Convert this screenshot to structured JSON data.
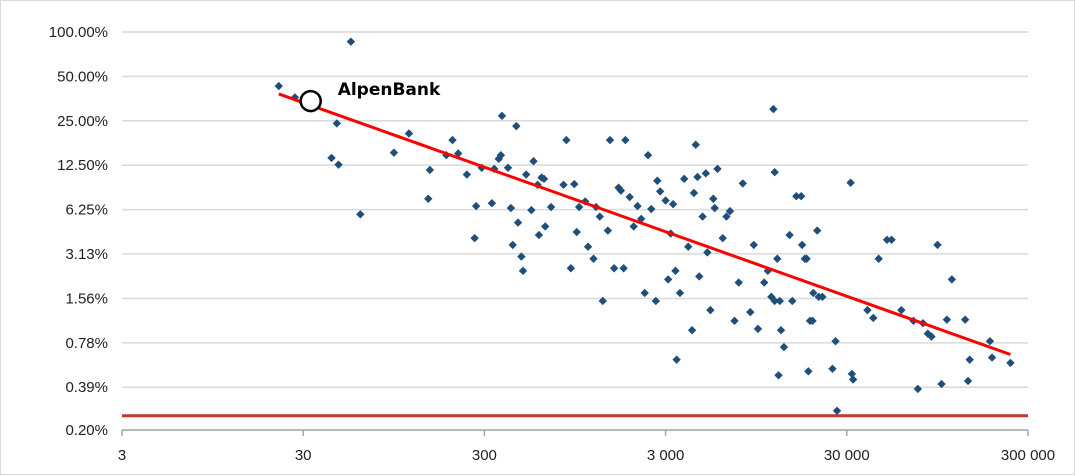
{
  "chart_data": {
    "type": "scatter",
    "title": "",
    "xlabel": "",
    "ylabel": "",
    "x_scale": "log",
    "y_scale": "log",
    "xlim": [
      3,
      300000
    ],
    "ylim": [
      0.2,
      100
    ],
    "x_ticks": [
      {
        "value": 3,
        "label": "3"
      },
      {
        "value": 30,
        "label": "30"
      },
      {
        "value": 300,
        "label": "300"
      },
      {
        "value": 3000,
        "label": "3 000"
      },
      {
        "value": 30000,
        "label": "30 000"
      },
      {
        "value": 300000,
        "label": "300 000"
      }
    ],
    "y_ticks": [
      {
        "value": 100,
        "label": "100.00%"
      },
      {
        "value": 50,
        "label": "50.00%"
      },
      {
        "value": 25,
        "label": "25.00%"
      },
      {
        "value": 12.5,
        "label": "12.50%"
      },
      {
        "value": 6.25,
        "label": "6.25%"
      },
      {
        "value": 3.13,
        "label": "3.13%"
      },
      {
        "value": 1.56,
        "label": "1.56%"
      },
      {
        "value": 0.78,
        "label": "0.78%"
      },
      {
        "value": 0.39,
        "label": "0.39%"
      },
      {
        "value": 0.2,
        "label": "0.20%"
      }
    ],
    "grid": {
      "horizontal": true,
      "vertical": false
    },
    "colors": {
      "points": "#1f4e79",
      "trend": "#ff0000",
      "reference": "#c0392b",
      "grid": "#d9d9d9",
      "axis": "#a6a6a6"
    },
    "points": [
      [
        22,
        43
      ],
      [
        27,
        36
      ],
      [
        55,
        86
      ],
      [
        46,
        24
      ],
      [
        43,
        14
      ],
      [
        47,
        12.6
      ],
      [
        62,
        5.8
      ],
      [
        95,
        15.2
      ],
      [
        115,
        20.5
      ],
      [
        150,
        11.6
      ],
      [
        147,
        7.4
      ],
      [
        185,
        14.6
      ],
      [
        200,
        18.5
      ],
      [
        215,
        15
      ],
      [
        240,
        10.8
      ],
      [
        270,
        6.6
      ],
      [
        265,
        4
      ],
      [
        290,
        12
      ],
      [
        330,
        6.9
      ],
      [
        340,
        11.8
      ],
      [
        360,
        13.8
      ],
      [
        370,
        14.6
      ],
      [
        375,
        27
      ],
      [
        405,
        12
      ],
      [
        420,
        6.4
      ],
      [
        430,
        3.6
      ],
      [
        460,
        5.1
      ],
      [
        480,
        3
      ],
      [
        490,
        2.4
      ],
      [
        450,
        23
      ],
      [
        510,
        10.8
      ],
      [
        545,
        6.2
      ],
      [
        560,
        13.3
      ],
      [
        590,
        9.2
      ],
      [
        600,
        4.2
      ],
      [
        620,
        10.3
      ],
      [
        650,
        4.8
      ],
      [
        640,
        10.1
      ],
      [
        700,
        6.5
      ],
      [
        820,
        9.2
      ],
      [
        850,
        18.5
      ],
      [
        900,
        2.5
      ],
      [
        940,
        9.3
      ],
      [
        970,
        4.4
      ],
      [
        1000,
        6.5
      ],
      [
        1080,
        7.1
      ],
      [
        1120,
        3.5
      ],
      [
        1200,
        2.9
      ],
      [
        1240,
        6.5
      ],
      [
        1300,
        5.6
      ],
      [
        1350,
        1.5
      ],
      [
        1440,
        4.5
      ],
      [
        1480,
        18.5
      ],
      [
        1560,
        2.5
      ],
      [
        1650,
        8.8
      ],
      [
        1700,
        8.4
      ],
      [
        1760,
        2.5
      ],
      [
        1800,
        18.5
      ],
      [
        1900,
        7.6
      ],
      [
        2000,
        4.8
      ],
      [
        2100,
        6.6
      ],
      [
        2200,
        5.4
      ],
      [
        2300,
        1.7
      ],
      [
        2400,
        14.6
      ],
      [
        2500,
        6.3
      ],
      [
        2650,
        1.5
      ],
      [
        2700,
        9.8
      ],
      [
        2800,
        8.3
      ],
      [
        3000,
        7.2
      ],
      [
        3100,
        2.1
      ],
      [
        3200,
        4.3
      ],
      [
        3300,
        6.8
      ],
      [
        3400,
        2.4
      ],
      [
        3450,
        0.6
      ],
      [
        3600,
        1.7
      ],
      [
        3800,
        10.1
      ],
      [
        4000,
        3.5
      ],
      [
        4200,
        0.95
      ],
      [
        4300,
        8.1
      ],
      [
        4400,
        17.2
      ],
      [
        4500,
        10.4
      ],
      [
        4600,
        2.2
      ],
      [
        4800,
        5.6
      ],
      [
        5000,
        11
      ],
      [
        5100,
        3.2
      ],
      [
        5300,
        1.3
      ],
      [
        5500,
        7.4
      ],
      [
        5600,
        6.4
      ],
      [
        5800,
        11.8
      ],
      [
        6200,
        4
      ],
      [
        6500,
        5.6
      ],
      [
        6800,
        6.1
      ],
      [
        7200,
        1.1
      ],
      [
        7600,
        2
      ],
      [
        8000,
        9.4
      ],
      [
        8800,
        1.26
      ],
      [
        9200,
        3.6
      ],
      [
        9700,
        0.97
      ],
      [
        10500,
        2
      ],
      [
        11000,
        2.4
      ],
      [
        11500,
        1.6
      ],
      [
        11800,
        30
      ],
      [
        12000,
        1.5
      ],
      [
        12400,
        2.9
      ],
      [
        12800,
        1.5
      ],
      [
        13000,
        0.95
      ],
      [
        12000,
        11.2
      ],
      [
        12600,
        0.47
      ],
      [
        13500,
        0.73
      ],
      [
        14500,
        4.2
      ],
      [
        15000,
        1.5
      ],
      [
        15800,
        7.7
      ],
      [
        16800,
        7.7
      ],
      [
        17000,
        3.6
      ],
      [
        17600,
        2.9
      ],
      [
        18000,
        2.9
      ],
      [
        18400,
        0.5
      ],
      [
        18800,
        1.1
      ],
      [
        19400,
        1.1
      ],
      [
        19600,
        1.7
      ],
      [
        20600,
        4.5
      ],
      [
        21000,
        1.6
      ],
      [
        22000,
        1.6
      ],
      [
        25000,
        0.52
      ],
      [
        26000,
        0.8
      ],
      [
        26500,
        0.27
      ],
      [
        31500,
        9.5
      ],
      [
        32000,
        0.48
      ],
      [
        32500,
        0.44
      ],
      [
        39000,
        1.3
      ],
      [
        42000,
        1.15
      ],
      [
        45000,
        2.9
      ],
      [
        50000,
        3.9
      ],
      [
        53000,
        3.9
      ],
      [
        60000,
        1.3
      ],
      [
        70000,
        1.1
      ],
      [
        74000,
        0.38
      ],
      [
        79000,
        1.06
      ],
      [
        84000,
        0.9
      ],
      [
        88000,
        0.86
      ],
      [
        95000,
        3.6
      ],
      [
        100000,
        0.41
      ],
      [
        107000,
        1.12
      ],
      [
        114000,
        2.1
      ],
      [
        135000,
        1.12
      ],
      [
        140000,
        0.43
      ],
      [
        143000,
        0.6
      ],
      [
        185000,
        0.8
      ],
      [
        190000,
        0.62
      ],
      [
        240000,
        0.57
      ]
    ],
    "trend_line": {
      "x": [
        22,
        240000
      ],
      "y": [
        38,
        0.65
      ]
    },
    "reference_line": {
      "y": 0.25
    },
    "annotations": [
      {
        "text": "AlpenBank",
        "x": 33,
        "y": 34,
        "marker": "open-circle"
      }
    ]
  }
}
